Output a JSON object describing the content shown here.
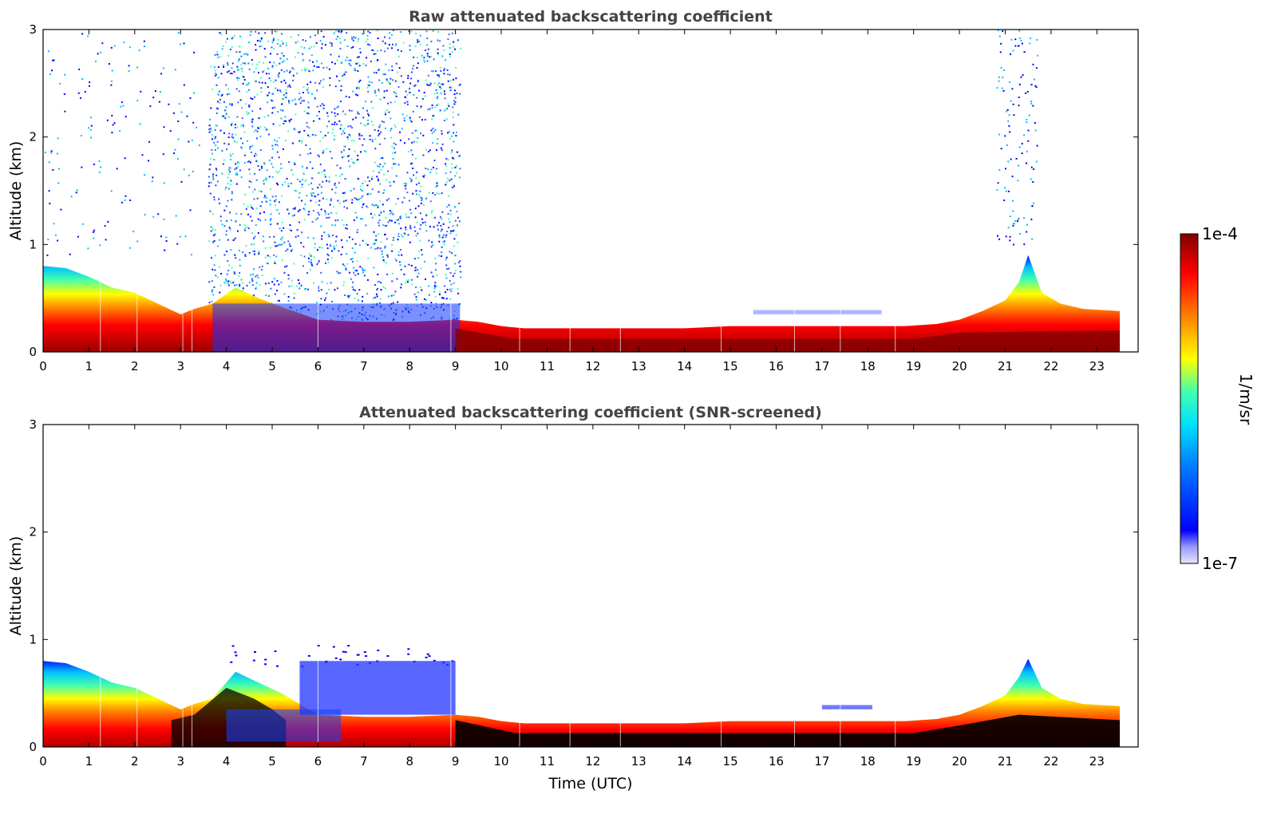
{
  "colors": {
    "frame": "#000000",
    "title": "#444444",
    "saturated_screened": "#000000",
    "colormap": [
      "#e6e6fa",
      "#0000ff",
      "#00bfff",
      "#00ffa0",
      "#ffff00",
      "#ff8000",
      "#ff0000",
      "#800000"
    ]
  },
  "chart_data": [
    {
      "type": "heatmap",
      "title": "Raw attenuated backscattering coefficient",
      "xlabel": "",
      "ylabel": "Altitude (km)",
      "xlim": [
        0,
        23.9
      ],
      "ylim": [
        0,
        3
      ],
      "xticks": [
        "0",
        "1",
        "2",
        "3",
        "4",
        "5",
        "6",
        "7",
        "8",
        "9",
        "10",
        "11",
        "12",
        "13",
        "14",
        "15",
        "16",
        "17",
        "18",
        "19",
        "20",
        "21",
        "22",
        "23"
      ],
      "yticks": [
        "0",
        "1",
        "2",
        "3"
      ],
      "color_scale": "log",
      "boundary_layer_top_km": {
        "x": [
          0,
          0.5,
          1,
          1.5,
          2,
          2.5,
          3,
          3.3,
          3.7,
          4.2,
          4.7,
          5.2,
          6,
          7,
          8,
          9,
          9.5,
          10,
          10.5,
          11,
          12,
          13,
          14,
          15,
          16,
          17,
          18,
          18.8,
          19.5,
          20,
          20.5,
          21,
          21.3,
          21.5,
          21.8,
          22.2,
          22.7,
          23.5
        ],
        "y": [
          0.8,
          0.78,
          0.7,
          0.6,
          0.55,
          0.45,
          0.35,
          0.4,
          0.45,
          0.6,
          0.5,
          0.42,
          0.3,
          0.28,
          0.28,
          0.3,
          0.28,
          0.24,
          0.22,
          0.22,
          0.22,
          0.22,
          0.22,
          0.24,
          0.24,
          0.24,
          0.24,
          0.24,
          0.26,
          0.3,
          0.38,
          0.48,
          0.65,
          0.9,
          0.55,
          0.45,
          0.4,
          0.38
        ]
      },
      "noise_window_utc": [
        3.6,
        9.1
      ],
      "elevated_layer": {
        "x_range": [
          15.5,
          18.3
        ],
        "altitude_km": 0.37
      }
    },
    {
      "type": "heatmap",
      "title": "Attenuated backscattering coefficient (SNR-screened)",
      "xlabel": "Time (UTC)",
      "ylabel": "Altitude (km)",
      "xlim": [
        0,
        23.9
      ],
      "ylim": [
        0,
        3
      ],
      "xticks": [
        "0",
        "1",
        "2",
        "3",
        "4",
        "5",
        "6",
        "7",
        "8",
        "9",
        "10",
        "11",
        "12",
        "13",
        "14",
        "15",
        "16",
        "17",
        "18",
        "19",
        "20",
        "21",
        "22",
        "23"
      ],
      "yticks": [
        "0",
        "1",
        "2",
        "3"
      ],
      "color_scale": "log",
      "boundary_layer_top_km": {
        "x": [
          0,
          0.5,
          1,
          1.5,
          2,
          2.5,
          3,
          3.3,
          3.7,
          4.2,
          4.7,
          5.2,
          6,
          7,
          8,
          9,
          9.5,
          10,
          10.5,
          11,
          12,
          13,
          14,
          15,
          16,
          17,
          18,
          18.8,
          19.5,
          20,
          20.5,
          21,
          21.3,
          21.5,
          21.8,
          22.2,
          22.7,
          23.5
        ],
        "y": [
          0.8,
          0.78,
          0.7,
          0.6,
          0.55,
          0.45,
          0.35,
          0.4,
          0.45,
          0.7,
          0.6,
          0.5,
          0.3,
          0.28,
          0.28,
          0.3,
          0.28,
          0.24,
          0.22,
          0.22,
          0.22,
          0.22,
          0.22,
          0.24,
          0.24,
          0.24,
          0.24,
          0.24,
          0.26,
          0.3,
          0.38,
          0.48,
          0.65,
          0.82,
          0.55,
          0.45,
          0.4,
          0.38
        ]
      },
      "residual_layer": {
        "x_range": [
          5.6,
          9.0
        ],
        "altitude_km_range": [
          0.3,
          0.8
        ]
      },
      "elevated_layer": {
        "x_range": [
          17.0,
          18.1
        ],
        "altitude_km": 0.37
      }
    }
  ],
  "colorbar": {
    "label": "1/m/sr",
    "max_label": "1e-4",
    "min_label": "1e-7",
    "scale": "log",
    "range": [
      1e-07,
      0.0001
    ]
  }
}
